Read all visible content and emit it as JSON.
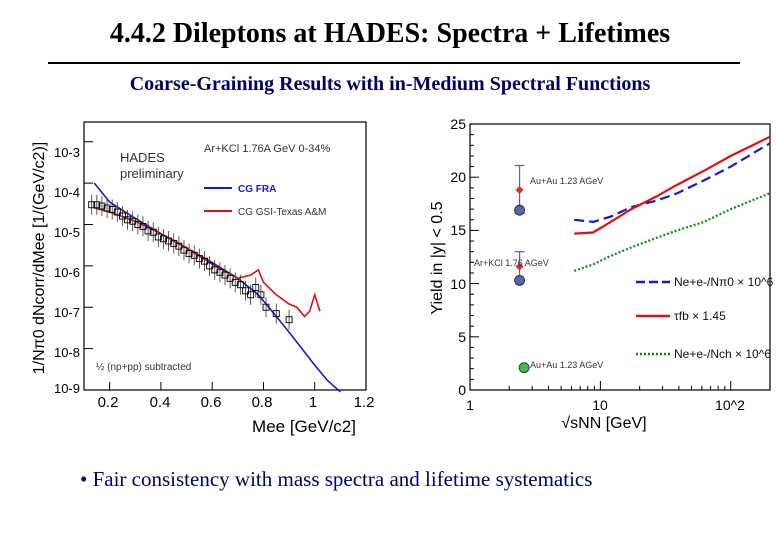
{
  "title": "4.4.2 Dileptons at HADES: Spectra + Lifetimes",
  "subtitle": "Coarse-Graining Results with in-Medium Spectral Functions",
  "bullet": "• Fair consistency with mass spectra and lifetime systematics",
  "colors": {
    "subtitle": "#000066",
    "bullet": "#000066",
    "blue": "#1a1acc",
    "red": "#dd1111",
    "green": "#118811",
    "point_blue": "#5566aa",
    "point_red": "#cc3333",
    "point_green": "#44bb44"
  },
  "chart_data": [
    {
      "type": "line",
      "xlabel": "Mee [GeV/c2]",
      "ylabel": "1/Nπ0 dNcorr/dMee [1/(GeV/c2)]",
      "xlim": [
        0.1,
        1.2
      ],
      "ylim": [
        1e-09,
        0.003
      ],
      "yscale": "log",
      "x_ticks": [
        "0.2",
        "0.4",
        "0.6",
        "0.8",
        "1",
        "1.2"
      ],
      "y_ticks": [
        "10-3",
        "10-4",
        "10-5",
        "10-6",
        "10-7",
        "10-8",
        "10-9"
      ],
      "annotations": [
        "HADES",
        "preliminary",
        "Ar+KCl 1.76A GeV 0-34%",
        "½ (np+pp) subtracted"
      ],
      "legend": {
        "position": "top-right",
        "entries": [
          "CG FRA",
          "CG GSI-Texas A&M"
        ]
      },
      "series": [
        {
          "name": "CG FRA",
          "style": "line",
          "color": "#1a1acc",
          "x": [
            0.14,
            0.2,
            0.3,
            0.4,
            0.5,
            0.6,
            0.7,
            0.78,
            0.85,
            0.9,
            0.95,
            1.0,
            1.05,
            1.1
          ],
          "y": [
            0.0001,
            3.5e-05,
            1.4e-05,
            6e-06,
            2.7e-06,
            1.2e-06,
            5e-07,
            2e-07,
            6e-08,
            2.5e-08,
            1e-08,
            4e-09,
            1.7e-09,
            9e-10
          ]
        },
        {
          "name": "CG GSI-Texas A&M",
          "style": "line",
          "color": "#dd1111",
          "x": [
            0.14,
            0.2,
            0.3,
            0.4,
            0.5,
            0.6,
            0.7,
            0.75,
            0.78,
            0.8,
            0.85,
            0.9,
            0.93,
            0.96,
            0.98,
            1.0,
            1.02
          ],
          "y": [
            2.5e-05,
            2e-05,
            1.2e-05,
            6e-06,
            2.7e-06,
            1.1e-06,
            5e-07,
            6e-07,
            8e-07,
            4e-07,
            2e-07,
            1.2e-07,
            1e-07,
            6e-08,
            8e-08,
            2e-07,
            8e-08
          ]
        },
        {
          "name": "",
          "style": "points",
          "color": "#000000",
          "x": [
            0.13,
            0.15,
            0.17,
            0.19,
            0.21,
            0.23,
            0.25,
            0.27,
            0.29,
            0.31,
            0.33,
            0.35,
            0.37,
            0.39,
            0.41,
            0.43,
            0.45,
            0.47,
            0.49,
            0.51,
            0.53,
            0.55,
            0.57,
            0.59,
            0.61,
            0.63,
            0.65,
            0.67,
            0.69,
            0.71,
            0.73,
            0.75,
            0.77,
            0.79,
            0.81,
            0.85,
            0.9
          ],
          "y": [
            3e-05,
            3e-05,
            2.8e-05,
            2.5e-05,
            2.3e-05,
            2e-05,
            1.6e-05,
            1.3e-05,
            1.2e-05,
            1e-05,
            9e-06,
            7e-06,
            6.5e-06,
            5e-06,
            4.5e-06,
            4e-06,
            3.5e-06,
            3e-06,
            2.4e-06,
            2e-06,
            1.8e-06,
            1.5e-06,
            1.3e-06,
            1e-06,
            8e-07,
            7e-07,
            6e-07,
            5e-07,
            4e-07,
            3.5e-07,
            2.5e-07,
            2e-07,
            3e-07,
            2e-07,
            1e-07,
            7e-08,
            5e-08
          ]
        }
      ]
    },
    {
      "type": "line",
      "xlabel": "√sNN [GeV]",
      "ylabel": "Yield in |y| < 0.5",
      "xlim": [
        1,
        200
      ],
      "xscale": "log",
      "ylim": [
        0,
        25
      ],
      "x_ticks": [
        "1",
        "10",
        "10^2"
      ],
      "y_ticks": [
        "0",
        "5",
        "10",
        "15",
        "20",
        "25"
      ],
      "annotations": [
        "Au+Au 1.23 AGeV",
        "Ar+KCl 1.76 AGeV",
        "Au+Au 1.23 AGeV"
      ],
      "legend": {
        "position": "bottom-right",
        "entries": [
          "Ne+e-/Nπ0 × 10^6",
          "τfb × 1.45",
          "Ne+e-/Nch × 10^6"
        ]
      },
      "series": [
        {
          "name": "Ne+e-/Nπ0 × 10^6",
          "style": "dashed",
          "color": "#1a1acc",
          "x": [
            6.3,
            8.8,
            12,
            17.3,
            27,
            39,
            62.4,
            100,
            200
          ],
          "y": [
            16,
            15.8,
            16.3,
            17.2,
            17.8,
            18.5,
            19.7,
            21.0,
            23.2
          ]
        },
        {
          "name": "τfb × 1.45",
          "style": "solid",
          "color": "#dd1111",
          "x": [
            6.3,
            8.8,
            12,
            17.3,
            27,
            39,
            62.4,
            100,
            200
          ],
          "y": [
            14.7,
            14.8,
            15.8,
            17.0,
            18.2,
            19.3,
            20.6,
            22.0,
            23.8
          ]
        },
        {
          "name": "Ne+e-/Nch × 10^6",
          "style": "dotted",
          "color": "#118811",
          "x": [
            6.3,
            8.8,
            12,
            17.3,
            27,
            39,
            62.4,
            100,
            200
          ],
          "y": [
            11.2,
            11.8,
            12.6,
            13.4,
            14.3,
            15.0,
            15.8,
            17.0,
            18.5
          ]
        },
        {
          "name": "",
          "style": "points",
          "x": [
            2.4,
            2.4,
            2.4,
            2.4,
            2.6
          ],
          "y": [
            18.8,
            16.9,
            11.6,
            10.3,
            2.1
          ],
          "err_low": [
            2.2,
            0,
            1.2,
            0,
            0
          ],
          "err_high": [
            2.3,
            0,
            1.4,
            0,
            0
          ],
          "colors": [
            "#cc3333",
            "#5566aa",
            "#cc3333",
            "#5566aa",
            "#44bb44"
          ]
        }
      ]
    }
  ]
}
